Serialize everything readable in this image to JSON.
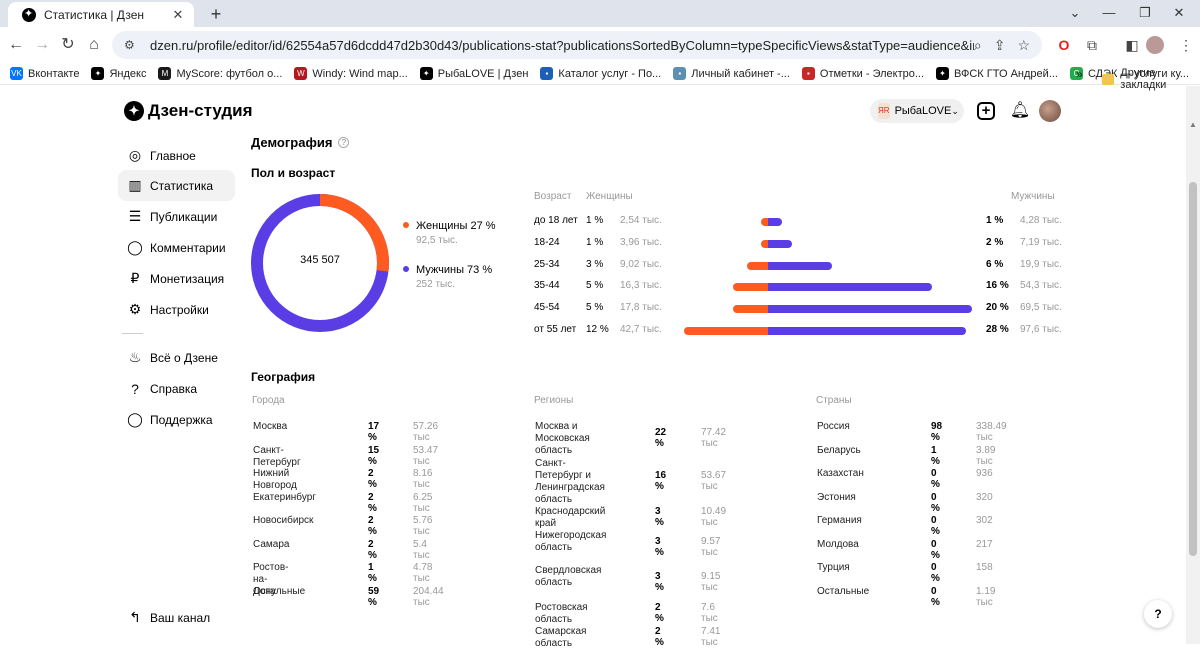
{
  "browser": {
    "tab_title": "Статистика | Дзен",
    "url": "dzen.ru/profile/editor/id/62554a57d6dcdd47d2b30d43/publications-stat?publicationsSortedByColumn=typeSpecificViews&statType=audience&intervalType=infinite",
    "bookmarks": [
      {
        "label": "Вконтакте",
        "color": "#0077ff",
        "glyph": "VK"
      },
      {
        "label": "Яндекс",
        "color": "#000000",
        "glyph": "✦"
      },
      {
        "label": "MyScore: футбол о...",
        "color": "#1a1a1a",
        "glyph": "M"
      },
      {
        "label": "Windy: Wind map...",
        "color": "#b5171f",
        "glyph": "W"
      },
      {
        "label": "РыбаLOVE | Дзен",
        "color": "#000000",
        "glyph": "✦"
      },
      {
        "label": "Каталог услуг - По...",
        "color": "#1c5fb7",
        "glyph": "▪"
      },
      {
        "label": "Личный кабинет -...",
        "color": "#5d8fb3",
        "glyph": "▪"
      },
      {
        "label": "Отметки - Электро...",
        "color": "#c62828",
        "glyph": "▪"
      },
      {
        "label": "ВФСК ГТО Андрей...",
        "color": "#000000",
        "glyph": "✦"
      },
      {
        "label": "СДЭК — услуги ку...",
        "color": "#1fae4b",
        "glyph": "С"
      }
    ],
    "bookmarks_more": "»",
    "other_bookmarks": "Другие закладки"
  },
  "header": {
    "logo_text": "Дзен-студия",
    "channel_name": "РыбаLOVE"
  },
  "sidebar": {
    "items": [
      {
        "label": "Главное",
        "icon": "planet-icon",
        "glyph": "◎"
      },
      {
        "label": "Статистика",
        "icon": "bar-chart-icon",
        "glyph": "▥"
      },
      {
        "label": "Публикации",
        "icon": "stack-icon",
        "glyph": "☰"
      },
      {
        "label": "Комментарии",
        "icon": "comment-icon",
        "glyph": "◯"
      },
      {
        "label": "Монетизация",
        "icon": "ruble-icon",
        "glyph": "₽"
      },
      {
        "label": "Настройки",
        "icon": "gear-icon",
        "glyph": "⚙"
      },
      {
        "label": "Всё о Дзене",
        "icon": "fire-icon",
        "glyph": "♨"
      },
      {
        "label": "Справка",
        "icon": "question-icon",
        "glyph": "?"
      },
      {
        "label": "Поддержка",
        "icon": "chat-icon",
        "glyph": "◯"
      },
      {
        "label": "Ваш канал",
        "icon": "back-arrow-icon",
        "glyph": "↰"
      }
    ]
  },
  "demography": {
    "title": "Демография",
    "gender_age_title": "Пол и возраст",
    "total": "345 507",
    "women": {
      "label": "Женщины 27 %",
      "count": "92,5 тыс.",
      "share": 0.27,
      "color": "#ff5a1f"
    },
    "men": {
      "label": "Мужчины 73 %",
      "count": "252 тыс.",
      "share": 0.73,
      "color": "#5b3de6"
    },
    "age_header": "Возраст",
    "women_header": "Женщины",
    "men_header": "Мужчины",
    "age_rows": [
      {
        "age": "до 18 лет",
        "w_pct": "1 %",
        "w_cnt": "2,54 тыс.",
        "m_pct": "1 %",
        "m_cnt": "4,28 тыс.",
        "w": 1,
        "m": 1
      },
      {
        "age": "18-24",
        "w_pct": "1 %",
        "w_cnt": "3,96 тыс.",
        "m_pct": "2 %",
        "m_cnt": "7,19 тыс.",
        "w": 1,
        "m": 2
      },
      {
        "age": "25-34",
        "w_pct": "3 %",
        "w_cnt": "9,02 тыс.",
        "m_pct": "6 %",
        "m_cnt": "19,9 тыс.",
        "w": 3,
        "m": 6
      },
      {
        "age": "35-44",
        "w_pct": "5 %",
        "w_cnt": "16,3 тыс.",
        "m_pct": "16 %",
        "m_cnt": "54,3 тыс.",
        "w": 5,
        "m": 16
      },
      {
        "age": "45-54",
        "w_pct": "5 %",
        "w_cnt": "17,8 тыс.",
        "m_pct": "20 %",
        "m_cnt": "69,5 тыс.",
        "w": 5,
        "m": 20
      },
      {
        "age": "от 55 лет",
        "w_pct": "12 %",
        "w_cnt": "42,7 тыс.",
        "m_pct": "28 %",
        "m_cnt": "97,6 тыс.",
        "w": 12,
        "m": 28
      }
    ]
  },
  "geography": {
    "title": "География",
    "cities_header": "Города",
    "regions_header": "Регионы",
    "countries_header": "Страны",
    "cities": [
      {
        "name": "Москва",
        "pct": "17 %",
        "cnt": "57.26 тыс"
      },
      {
        "name": "Санкт-Петербург",
        "pct": "15 %",
        "cnt": "53.47 тыс"
      },
      {
        "name": "Нижний Новгород",
        "pct": "2 %",
        "cnt": "8.16 тыс"
      },
      {
        "name": "Екатеринбург",
        "pct": "2 %",
        "cnt": "6.25 тыс"
      },
      {
        "name": "Новосибирск",
        "pct": "2 %",
        "cnt": "5.76 тыс"
      },
      {
        "name": "Самара",
        "pct": "2 %",
        "cnt": "5.4 тыс"
      },
      {
        "name": "Ростов-на-Дону",
        "pct": "1 %",
        "cnt": "4.78 тыс"
      },
      {
        "name": "Остальные",
        "pct": "59 %",
        "cnt": "204.44 тыс"
      }
    ],
    "regions": [
      {
        "name": "Москва и\nМосковская область",
        "pct": "22 %",
        "cnt": "77.42 тыс"
      },
      {
        "name": "Санкт-Петербург и\nЛенинградская\nобласть",
        "pct": "16 %",
        "cnt": "53.67 тыс"
      },
      {
        "name": "Краснодарский край",
        "pct": "3 %",
        "cnt": "10.49 тыс"
      },
      {
        "name": "Нижегородская\nобласть",
        "pct": "3 %",
        "cnt": "9.57 тыс"
      },
      {
        "name": "Свердловская\nобласть",
        "pct": "3 %",
        "cnt": "9.15 тыс"
      },
      {
        "name": "Ростовская область",
        "pct": "2 %",
        "cnt": "7.6 тыс"
      },
      {
        "name": "Самарская область",
        "pct": "2 %",
        "cnt": "7.41 тыс"
      }
    ],
    "countries": [
      {
        "name": "Россия",
        "pct": "98 %",
        "cnt": "338.49 тыс"
      },
      {
        "name": "Беларусь",
        "pct": "1 %",
        "cnt": "3.89 тыс"
      },
      {
        "name": "Казахстан",
        "pct": "0 %",
        "cnt": "936"
      },
      {
        "name": "Эстония",
        "pct": "0 %",
        "cnt": "320"
      },
      {
        "name": "Германия",
        "pct": "0 %",
        "cnt": "302"
      },
      {
        "name": "Молдова",
        "pct": "0 %",
        "cnt": "217"
      },
      {
        "name": "Турция",
        "pct": "0 %",
        "cnt": "158"
      },
      {
        "name": "Остальные",
        "pct": "0 %",
        "cnt": "1.19 тыс"
      }
    ]
  },
  "help_fab": "?"
}
